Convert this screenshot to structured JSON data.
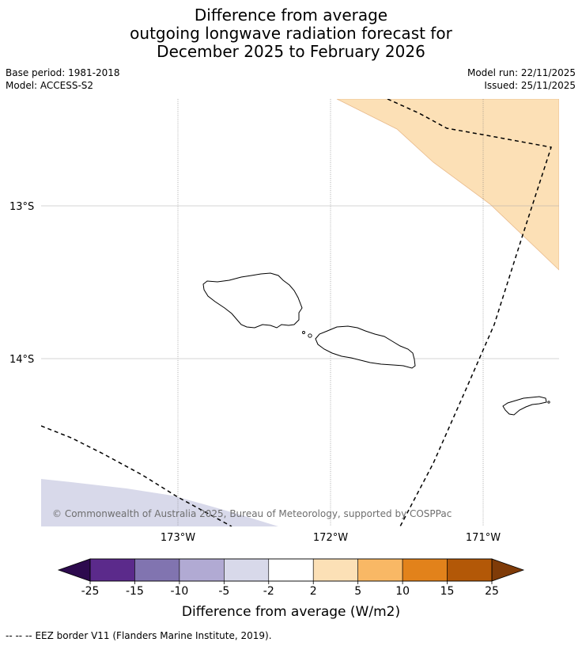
{
  "title": {
    "line1": "Difference from average",
    "line2": "outgoing longwave radiation forecast for",
    "line3": "December 2025 to February 2026"
  },
  "meta": {
    "base_period": "Base period: 1981-2018",
    "model": "Model: ACCESS-S2",
    "model_run": "Model run: 22/11/2025",
    "issued": "Issued: 25/11/2025"
  },
  "map": {
    "lat_labels": [
      "13°S",
      "14°S"
    ],
    "lon_labels": [
      "173°W",
      "172°W",
      "171°W"
    ],
    "copyright": "© Commonwealth of Australia 2025, Bureau of Meteorology, supported by COSPPac",
    "anomaly_fill_positive": "#fce0b6",
    "anomaly_fill_negative": "#d8d9ea"
  },
  "colorbar": {
    "label": "Difference from average (W/m2)",
    "ticks": [
      "-25",
      "-15",
      "-10",
      "-5",
      "-2",
      "2",
      "5",
      "10",
      "15",
      "25"
    ],
    "colors": [
      "#5b2a8b",
      "#8174b0",
      "#b1aad3",
      "#d8d9ea",
      "#ffffff",
      "#fce0b6",
      "#f9b865",
      "#e2821b",
      "#b35807"
    ],
    "under_color": "#2d0a4e",
    "over_color": "#7f3b08"
  },
  "footer": {
    "legend_symbol": "-- -- --",
    "legend_text": "EEZ border V11 (Flanders Marine Institute, 2019)."
  }
}
